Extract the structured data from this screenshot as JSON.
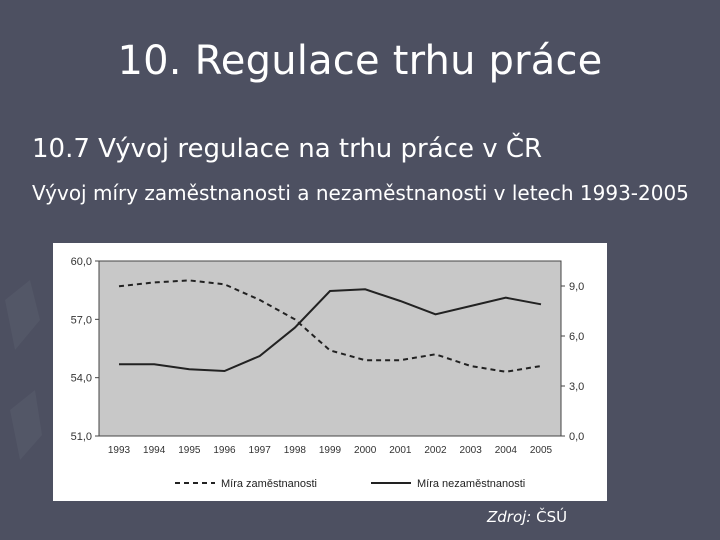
{
  "slide": {
    "title": "10. Regulace trhu práce",
    "subtitle": "10.7 Vývoj regulace na trhu práce v ČR",
    "caption": "Vývoj míry zaměstnanosti a nezaměstnanosti v letech 1993-2005",
    "source_label": "Zdroj:",
    "source_value": "ČSÚ"
  },
  "colors": {
    "background": "#4d5061",
    "plot_area": "#c8c8c8",
    "series": "#222222"
  },
  "chart_data": {
    "type": "line",
    "title": "",
    "xlabel": "",
    "ylabel": "",
    "x": [
      "1993",
      "1994",
      "1995",
      "1996",
      "1997",
      "1998",
      "1999",
      "2000",
      "2001",
      "2002",
      "2003",
      "2004",
      "2005"
    ],
    "ylim": [
      51.0,
      60.0
    ],
    "y2lim": [
      0.0,
      10.5
    ],
    "yticks": [
      "51,0",
      "54,0",
      "57,0",
      "60,0"
    ],
    "y2ticks": [
      "0,0",
      "3,0",
      "6,0",
      "9,0"
    ],
    "grid": false,
    "legend_position": "bottom",
    "series": [
      {
        "name": "Míra zaměstnanosti",
        "axis": "left",
        "style": "dashed",
        "values": [
          58.7,
          58.9,
          59.0,
          58.8,
          58.0,
          57.0,
          55.4,
          54.9,
          54.9,
          55.2,
          54.6,
          54.3,
          54.6
        ]
      },
      {
        "name": "Míra nezaměstnanosti",
        "axis": "right",
        "style": "solid",
        "values": [
          4.3,
          4.3,
          4.0,
          3.9,
          4.8,
          6.5,
          8.7,
          8.8,
          8.1,
          7.3,
          7.8,
          8.3,
          7.9
        ]
      }
    ]
  }
}
